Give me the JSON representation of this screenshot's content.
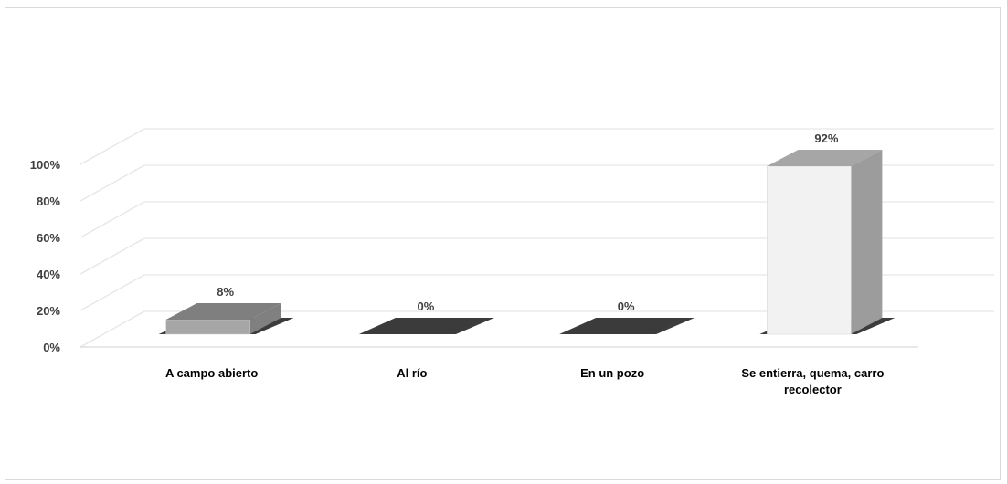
{
  "chart_data": {
    "type": "bar",
    "categories": [
      "A campo abierto",
      "Al río",
      "En un pozo",
      "Se entierra, quema, carro recolector"
    ],
    "category_lines": [
      [
        "A campo abierto"
      ],
      [
        "Al río"
      ],
      [
        "En un pozo"
      ],
      [
        "Se entierra, quema, carro",
        "recolector"
      ]
    ],
    "values": [
      8,
      0,
      0,
      92
    ],
    "data_labels": [
      "8%",
      "0%",
      "0%",
      "92%"
    ],
    "y_ticks": [
      "0%",
      "20%",
      "40%",
      "60%",
      "80%",
      "100%"
    ],
    "ylim": [
      0,
      100
    ],
    "title": "",
    "xlabel": "",
    "ylabel": "",
    "grid": true,
    "legend": "none",
    "style_3d": true,
    "colors": {
      "bar_fronts": [
        "#a6a6a6",
        "#3b3b3b",
        "#3b3b3b",
        "#f2f2f2"
      ],
      "bar_tops": [
        "#7f7f7f",
        "#595959",
        "#595959",
        "#a6a6a6"
      ],
      "bar_sides": [
        "#808080",
        "#262626",
        "#262626",
        "#9c9c9c"
      ],
      "gridline": "#e6e6e6",
      "shadow": "#1a1a1a"
    }
  }
}
